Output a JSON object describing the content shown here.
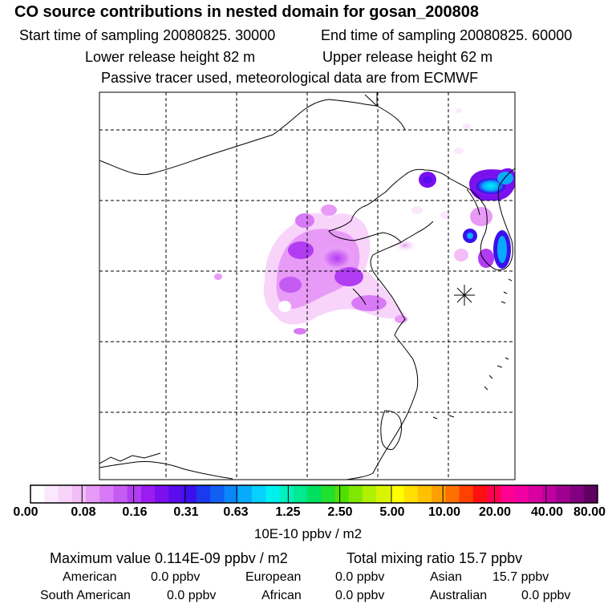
{
  "header": {
    "title": "CO  source contributions in nested domain for gosan_200808",
    "start_time": "Start time of sampling 20080825. 30000",
    "end_time": "End time of sampling 20080825. 60000",
    "lower_release": "Lower release height   82 m",
    "upper_release": "Upper release height   62 m",
    "tracer_note": "Passive tracer used, meteorological data are from ECMWF"
  },
  "colorbar": {
    "labels": [
      "0.00",
      "0.08",
      "0.16",
      "0.31",
      "0.63",
      "1.25",
      "2.50",
      "5.00",
      "10.00",
      "20.00",
      "40.00",
      "80.00"
    ],
    "units": "10E-10 ppbv / m2",
    "colors": [
      "#ffffff",
      "#fce8fc",
      "#f8d4fb",
      "#f3bdf8",
      "#e89af7",
      "#d87af5",
      "#c45cf3",
      "#b13cf1",
      "#9a1cf0",
      "#7a10ee",
      "#5a0cec",
      "#3a10ec",
      "#1a3af0",
      "#1060f4",
      "#0a86f8",
      "#08aafc",
      "#06d0fd",
      "#00f0f0",
      "#00f0c0",
      "#00e890",
      "#00e060",
      "#20e030",
      "#50e000",
      "#80e800",
      "#b0f000",
      "#d8f400",
      "#ffff00",
      "#ffe000",
      "#ffc000",
      "#ffa000",
      "#ff7000",
      "#ff4000",
      "#ff1010",
      "#ff0050",
      "#ff0090",
      "#f000a0",
      "#d800a0",
      "#c000a0",
      "#a00090",
      "#800080",
      "#600060"
    ]
  },
  "stats": {
    "max_value": "Maximum value  0.114E-09 ppbv / m2",
    "total_mixing": "Total mixing ratio       15.7 ppbv",
    "american": "American",
    "american_val": "0.0 ppbv",
    "european": "European",
    "european_val": "0.0 ppbv",
    "asian": "Asian",
    "asian_val": "15.7 ppbv",
    "south_american": "South American",
    "south_american_val": "0.0 ppbv",
    "african": "African",
    "african_val": "0.0 ppbv",
    "australian": "Australian",
    "australian_val": "0.0 ppbv"
  },
  "map": {
    "receptor_marker": "receptor-star-icon"
  }
}
